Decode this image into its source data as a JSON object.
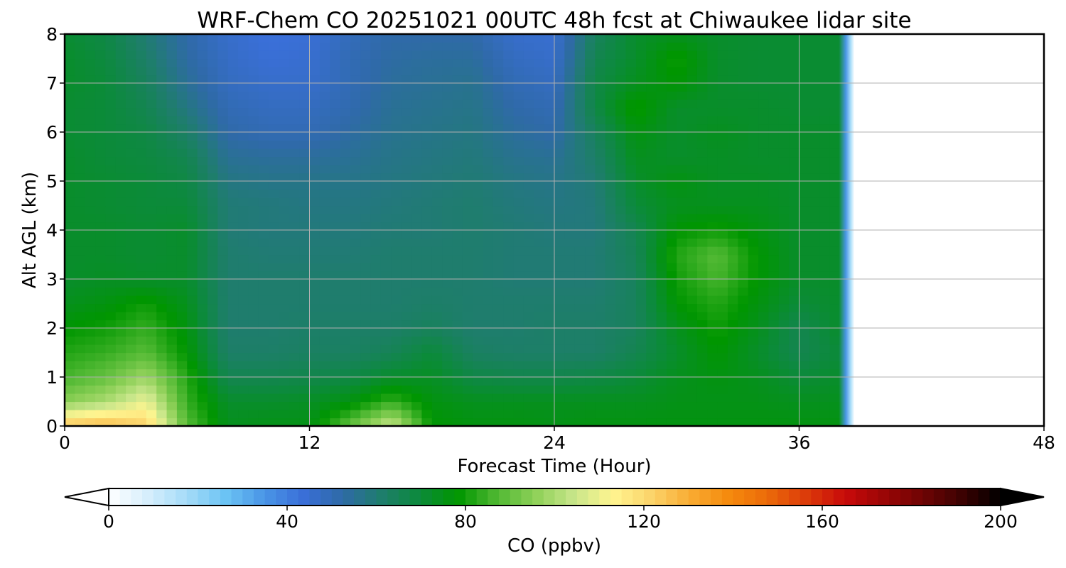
{
  "chart_data": {
    "type": "heatmap",
    "title": "WRF-Chem CO  20251021 00UTC 48h fcst at Chiwaukee lidar site",
    "xlabel": "Forecast Time (Hour)",
    "ylabel": "Alt AGL (km)",
    "xlim": [
      0,
      48
    ],
    "ylim": [
      0,
      8
    ],
    "x_ticks": [
      "0",
      "12",
      "24",
      "36",
      "48"
    ],
    "y_ticks": [
      "0",
      "1",
      "2",
      "3",
      "4",
      "5",
      "6",
      "7",
      "8"
    ],
    "grid": true,
    "data_end_hour": 38.5,
    "colorbar": {
      "label": "CO  (ppbv)",
      "range": [
        0,
        200
      ],
      "extend": "both",
      "ticks": [
        "0",
        "40",
        "80",
        "120",
        "160",
        "200"
      ],
      "colors": [
        "#ffffff",
        "#d6eefc",
        "#a6dcf8",
        "#6cc4f4",
        "#4a96e6",
        "#3a6fd8",
        "#2f6aa8",
        "#1f7d6e",
        "#0c8a3c",
        "#009600",
        "#4fb832",
        "#8ed058",
        "#c8e68a",
        "#fff590",
        "#fbd36a",
        "#f9ab32",
        "#f58a0c",
        "#eb6a0a",
        "#dc3a0a",
        "#c80a0a",
        "#9a0606",
        "#6e0404",
        "#3c0202",
        "#000000"
      ]
    },
    "grid_x_hours": [
      0,
      2,
      4,
      6,
      8,
      10,
      12,
      14,
      16,
      18,
      20,
      22,
      24,
      26,
      28,
      30,
      32,
      34,
      36,
      38
    ],
    "grid_y_km": [
      0,
      0.5,
      1,
      1.5,
      2,
      2.5,
      3,
      3.5,
      4,
      4.5,
      5,
      5.5,
      6,
      6.5,
      7,
      7.5,
      8
    ],
    "values_ppbv": [
      [
        125,
        128,
        122,
        88,
        74,
        75,
        75,
        90,
        105,
        78,
        76,
        76,
        75,
        76,
        76,
        76,
        76,
        76,
        76,
        76
      ],
      [
        95,
        100,
        110,
        84,
        72,
        72,
        73,
        76,
        84,
        76,
        74,
        74,
        74,
        74,
        74,
        75,
        75,
        75,
        74,
        74
      ],
      [
        86,
        90,
        98,
        82,
        66,
        66,
        67,
        68,
        72,
        73,
        68,
        67,
        67,
        68,
        70,
        74,
        76,
        74,
        70,
        72
      ],
      [
        82,
        84,
        88,
        78,
        62,
        62,
        63,
        63,
        65,
        70,
        63,
        62,
        62,
        62,
        66,
        72,
        78,
        72,
        66,
        70
      ],
      [
        78,
        80,
        84,
        76,
        61,
        61,
        62,
        62,
        62,
        64,
        61,
        61,
        62,
        62,
        64,
        74,
        80,
        74,
        66,
        72
      ],
      [
        74,
        76,
        80,
        74,
        61,
        61,
        61,
        61,
        61,
        62,
        61,
        61,
        61,
        61,
        64,
        78,
        82,
        76,
        70,
        72
      ],
      [
        72,
        73,
        72,
        72,
        61,
        61,
        61,
        61,
        61,
        61,
        61,
        60,
        60,
        60,
        64,
        80,
        86,
        78,
        72,
        72
      ],
      [
        72,
        72,
        71,
        72,
        61,
        60,
        60,
        60,
        61,
        61,
        61,
        60,
        60,
        60,
        65,
        82,
        88,
        78,
        72,
        72
      ],
      [
        72,
        72,
        71,
        72,
        60,
        59,
        59,
        59,
        60,
        60,
        61,
        60,
        59,
        59,
        66,
        78,
        80,
        76,
        72,
        72
      ],
      [
        72,
        71,
        70,
        70,
        60,
        59,
        58,
        58,
        59,
        60,
        61,
        59,
        58,
        59,
        70,
        74,
        74,
        74,
        72,
        72
      ],
      [
        72,
        71,
        70,
        68,
        58,
        57,
        57,
        57,
        58,
        59,
        60,
        58,
        57,
        60,
        72,
        76,
        73,
        73,
        72,
        72
      ],
      [
        72,
        70,
        69,
        66,
        55,
        54,
        54,
        55,
        57,
        58,
        59,
        56,
        55,
        62,
        74,
        72,
        73,
        72,
        72,
        72
      ],
      [
        71,
        70,
        68,
        62,
        52,
        50,
        50,
        53,
        56,
        57,
        58,
        54,
        52,
        64,
        76,
        72,
        74,
        72,
        72,
        72
      ],
      [
        71,
        70,
        66,
        58,
        50,
        48,
        48,
        51,
        55,
        56,
        57,
        52,
        50,
        68,
        80,
        72,
        72,
        72,
        71,
        71
      ],
      [
        72,
        70,
        64,
        55,
        48,
        46,
        46,
        50,
        54,
        55,
        56,
        50,
        48,
        68,
        74,
        78,
        72,
        71,
        71,
        71
      ],
      [
        72,
        69,
        62,
        53,
        47,
        44,
        45,
        50,
        53,
        54,
        54,
        48,
        46,
        66,
        72,
        80,
        72,
        71,
        71,
        71
      ],
      [
        71,
        68,
        60,
        52,
        46,
        43,
        44,
        49,
        52,
        52,
        52,
        46,
        45,
        64,
        72,
        74,
        72,
        71,
        71,
        71
      ]
    ]
  }
}
